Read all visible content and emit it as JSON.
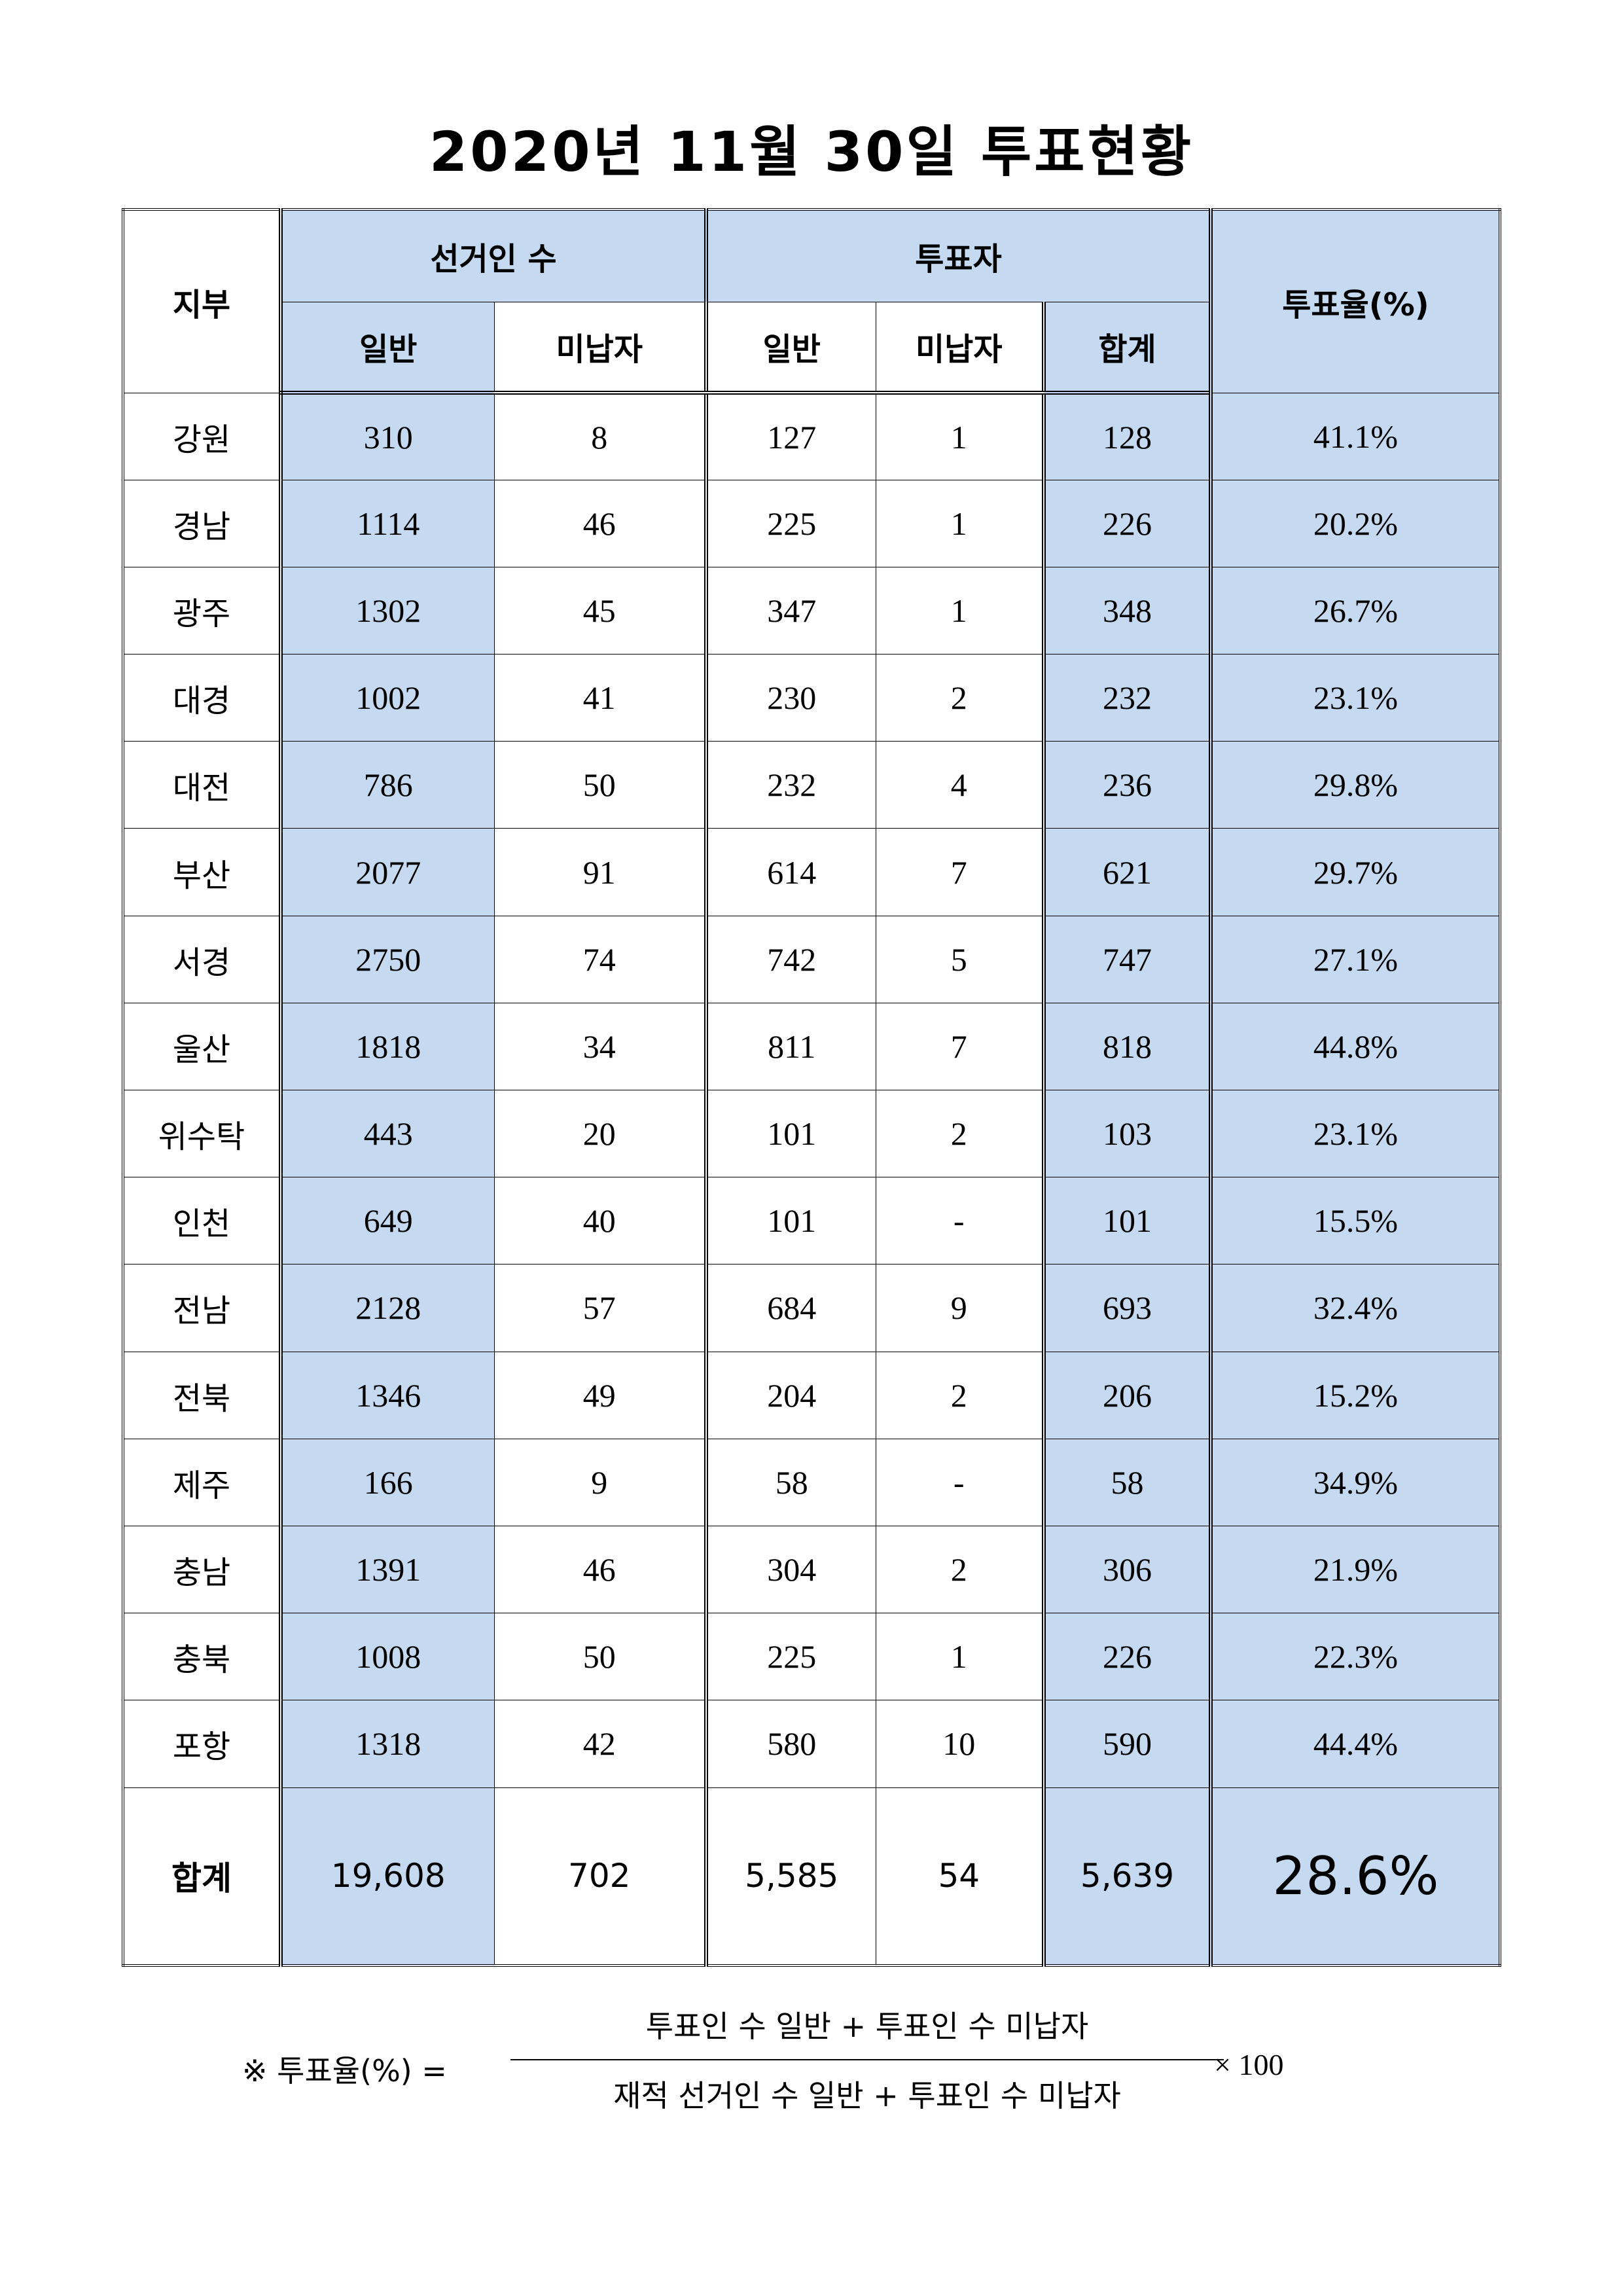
{
  "title": "2020년 11월 30일 투표현황",
  "headers": {
    "branch": "지부",
    "voters": "선거인 수",
    "ballots": "투표자",
    "rate": "투표율(%)",
    "general": "일반",
    "unpaid": "미납자",
    "general2": "일반",
    "unpaid2": "미납자",
    "sum": "합계"
  },
  "colors": {
    "highlight": "#c5d9f1"
  },
  "rows": [
    [
      "강원",
      "310",
      "8",
      "127",
      "1",
      "128",
      "41.1%"
    ],
    [
      "경남",
      "1114",
      "46",
      "225",
      "1",
      "226",
      "20.2%"
    ],
    [
      "광주",
      "1302",
      "45",
      "347",
      "1",
      "348",
      "26.7%"
    ],
    [
      "대경",
      "1002",
      "41",
      "230",
      "2",
      "232",
      "23.1%"
    ],
    [
      "대전",
      "786",
      "50",
      "232",
      "4",
      "236",
      "29.8%"
    ],
    [
      "부산",
      "2077",
      "91",
      "614",
      "7",
      "621",
      "29.7%"
    ],
    [
      "서경",
      "2750",
      "74",
      "742",
      "5",
      "747",
      "27.1%"
    ],
    [
      "울산",
      "1818",
      "34",
      "811",
      "7",
      "818",
      "44.8%"
    ],
    [
      "위수탁",
      "443",
      "20",
      "101",
      "2",
      "103",
      "23.1%"
    ],
    [
      "인천",
      "649",
      "40",
      "101",
      "-",
      "101",
      "15.5%"
    ],
    [
      "전남",
      "2128",
      "57",
      "684",
      "9",
      "693",
      "32.4%"
    ],
    [
      "전북",
      "1346",
      "49",
      "204",
      "2",
      "206",
      "15.2%"
    ],
    [
      "제주",
      "166",
      "9",
      "58",
      "-",
      "58",
      "34.9%"
    ],
    [
      "충남",
      "1391",
      "46",
      "304",
      "2",
      "306",
      "21.9%"
    ],
    [
      "충북",
      "1008",
      "50",
      "225",
      "1",
      "226",
      "22.3%"
    ],
    [
      "포항",
      "1318",
      "42",
      "580",
      "10",
      "590",
      "44.4%"
    ]
  ],
  "total": [
    "합계",
    "19,608",
    "702",
    "5,585",
    "54",
    "5,639",
    "28.6%"
  ],
  "formula": {
    "lhs": "※ 투표율(%) =",
    "numerator": "투표인 수 일반 + 투표인 수 미납자",
    "denominator": "재적 선거인 수 일반 + 투표인 수 미납자",
    "multiplier": "× 100"
  }
}
